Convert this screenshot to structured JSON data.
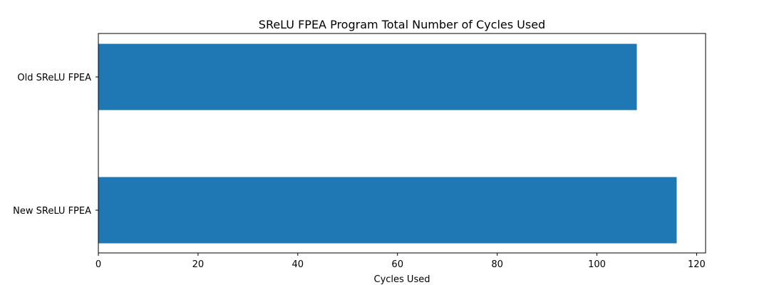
{
  "chart_data": {
    "type": "bar",
    "orientation": "horizontal",
    "title": "SReLU FPEA Program Total Number of Cycles Used",
    "xlabel": "Cycles Used",
    "ylabel": "",
    "categories": [
      "Old SReLU FPEA",
      "New SReLU FPEA"
    ],
    "values": [
      108,
      116
    ],
    "xlim": [
      0,
      121.8
    ],
    "xticks": [
      0,
      20,
      40,
      60,
      80,
      100,
      120
    ],
    "xtick_labels": [
      "0",
      "20",
      "40",
      "60",
      "80",
      "100",
      "120"
    ],
    "grid": false,
    "bar_color": "#1f77b4"
  }
}
